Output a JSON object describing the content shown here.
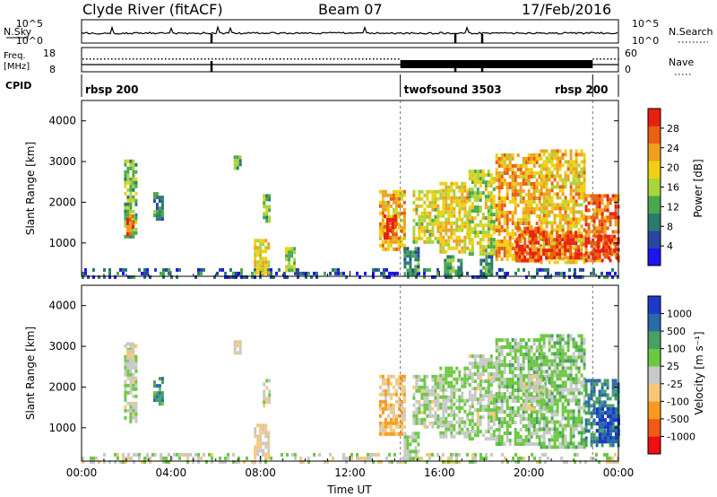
{
  "header": {
    "station": "Clyde River (fitACF)",
    "beam": "Beam 07",
    "date": "17/Feb/2016"
  },
  "params_strip": {
    "nsky_label": "N.Sky",
    "nsky_top": "10^5",
    "nsky_bottom": "10^0",
    "nsearch_label": "N.Search",
    "freq_label_1": "Freq.",
    "freq_label_2": "[MHz]",
    "freq_ticks": [
      "18",
      "8"
    ],
    "nave_label": "Nave",
    "nave_ticks": [
      "60",
      "0"
    ],
    "cpid_label": "CPID"
  },
  "cpid_segments": [
    {
      "label": "rbsp 200",
      "start_hour": 0.0,
      "end_hour": 14.25
    },
    {
      "label": "twofsound 3503",
      "start_hour": 14.25,
      "end_hour": 22.85
    },
    {
      "label": "rbsp 200",
      "start_hour": 22.85,
      "end_hour": 24.0
    }
  ],
  "colors": {
    "power_scale": [
      "#1e14f0",
      "#2846a0",
      "#2a7a6e",
      "#4aa84c",
      "#a8d43c",
      "#f0d010",
      "#f0a020",
      "#e86010",
      "#e82010"
    ],
    "velocity_scale": [
      "#ee1010",
      "#f05a14",
      "#f89a20",
      "#f8c878",
      "#c8c8c8",
      "#6cc840",
      "#48a060",
      "#2a6aa8",
      "#1e38c8"
    ]
  },
  "chart_data": [
    {
      "type": "heatmap",
      "name": "power",
      "ylabel": "Slant Range [km]",
      "ylim": [
        180,
        4500
      ],
      "yticks": [
        1000,
        2000,
        3000,
        4000
      ],
      "xlim": [
        0,
        24
      ],
      "colorbar_label": "Power [dB]",
      "colorbar_ticks": [
        "4",
        "8",
        "12",
        "16",
        "20",
        "24",
        "28"
      ],
      "value_range": [
        0,
        32
      ],
      "regions": [
        {
          "t0": 1.9,
          "t1": 2.5,
          "r0": 1150,
          "r1": 3050,
          "value": 14
        },
        {
          "t0": 2.0,
          "t1": 2.35,
          "r0": 1250,
          "r1": 1700,
          "value": 26
        },
        {
          "t0": 3.2,
          "t1": 3.6,
          "r0": 1550,
          "r1": 2250,
          "value": 10
        },
        {
          "t0": 6.8,
          "t1": 7.1,
          "r0": 2850,
          "r1": 3150,
          "value": 12
        },
        {
          "t0": 7.7,
          "t1": 8.4,
          "r0": 300,
          "r1": 1100,
          "value": 20
        },
        {
          "t0": 8.1,
          "t1": 8.35,
          "r0": 1550,
          "r1": 2200,
          "value": 14
        },
        {
          "t0": 9.1,
          "t1": 9.5,
          "r0": 300,
          "r1": 900,
          "value": 16
        },
        {
          "t0": 13.3,
          "t1": 14.4,
          "r0": 850,
          "r1": 2300,
          "value": 22
        },
        {
          "t0": 13.5,
          "t1": 14.0,
          "r0": 1100,
          "r1": 1700,
          "value": 29
        },
        {
          "t0": 14.4,
          "t1": 15.1,
          "r0": 200,
          "r1": 900,
          "value": 10
        },
        {
          "t0": 14.8,
          "t1": 16.0,
          "r0": 1000,
          "r1": 2300,
          "value": 18
        },
        {
          "t0": 16.0,
          "t1": 17.3,
          "r0": 800,
          "r1": 2500,
          "value": 20
        },
        {
          "t0": 16.2,
          "t1": 17.0,
          "r0": 250,
          "r1": 700,
          "value": 12
        },
        {
          "t0": 17.3,
          "t1": 18.5,
          "r0": 700,
          "r1": 2800,
          "value": 17
        },
        {
          "t0": 17.8,
          "t1": 18.4,
          "r0": 200,
          "r1": 700,
          "value": 10
        },
        {
          "t0": 18.5,
          "t1": 20.5,
          "r0": 600,
          "r1": 3200,
          "value": 22
        },
        {
          "t0": 19.4,
          "t1": 20.6,
          "r0": 600,
          "r1": 1400,
          "value": 29
        },
        {
          "t0": 20.5,
          "t1": 22.5,
          "r0": 500,
          "r1": 3300,
          "value": 21
        },
        {
          "t0": 20.6,
          "t1": 22.3,
          "r0": 600,
          "r1": 1300,
          "value": 29
        },
        {
          "t0": 22.5,
          "t1": 24.0,
          "r0": 600,
          "r1": 2200,
          "value": 26
        },
        {
          "t0": 22.8,
          "t1": 24.0,
          "r0": 650,
          "r1": 1200,
          "value": 30
        }
      ],
      "noise_rows": [
        {
          "t0": 0.0,
          "t1": 24.0,
          "r0": 180,
          "r1": 380,
          "value": 6
        }
      ]
    },
    {
      "type": "heatmap",
      "name": "velocity",
      "ylabel": "Slant Range [km]",
      "ylim": [
        180,
        4500
      ],
      "yticks": [
        1000,
        2000,
        3000,
        4000
      ],
      "xlim": [
        0,
        24
      ],
      "xlabel": "Time UT",
      "xticks": [
        "00:00",
        "04:00",
        "08:00",
        "12:00",
        "16:00",
        "20:00",
        "00:00"
      ],
      "colorbar_label": "Velocity [m s⁻¹]",
      "colorbar_ticks": [
        "-1000",
        "-500",
        "-100",
        "-25",
        "25",
        "100",
        "500",
        "1000"
      ],
      "value_range": [
        -1200,
        1200
      ],
      "regions": [
        {
          "t0": 1.9,
          "t1": 2.5,
          "r0": 1150,
          "r1": 3050,
          "value": 80
        },
        {
          "t0": 2.0,
          "t1": 2.35,
          "r0": 2600,
          "r1": 3100,
          "value": -150
        },
        {
          "t0": 3.2,
          "t1": 3.6,
          "r0": 1550,
          "r1": 2250,
          "value": 600
        },
        {
          "t0": 6.8,
          "t1": 7.1,
          "r0": 2850,
          "r1": 3150,
          "value": -80
        },
        {
          "t0": 7.7,
          "t1": 8.4,
          "r0": 300,
          "r1": 1100,
          "value": -150
        },
        {
          "t0": 8.1,
          "t1": 8.35,
          "r0": 1550,
          "r1": 2200,
          "value": -60
        },
        {
          "t0": 13.3,
          "t1": 14.4,
          "r0": 850,
          "r1": 2300,
          "value": -300
        },
        {
          "t0": 14.4,
          "t1": 15.1,
          "r0": 200,
          "r1": 900,
          "value": 120
        },
        {
          "t0": 14.8,
          "t1": 16.0,
          "r0": 1000,
          "r1": 2300,
          "value": 80
        },
        {
          "t0": 16.0,
          "t1": 17.3,
          "r0": 800,
          "r1": 2500,
          "value": 150
        },
        {
          "t0": 17.3,
          "t1": 18.5,
          "r0": 700,
          "r1": 2800,
          "value": 90
        },
        {
          "t0": 18.5,
          "t1": 20.5,
          "r0": 600,
          "r1": 3200,
          "value": 200
        },
        {
          "t0": 19.6,
          "t1": 21.0,
          "r0": 1500,
          "r1": 2300,
          "value": 0
        },
        {
          "t0": 20.5,
          "t1": 22.5,
          "r0": 500,
          "r1": 3300,
          "value": 250
        },
        {
          "t0": 22.5,
          "t1": 24.0,
          "r0": 600,
          "r1": 2200,
          "value": 650
        },
        {
          "t0": 23.0,
          "t1": 24.0,
          "r0": 650,
          "r1": 1500,
          "value": 950
        }
      ],
      "noise_rows": [
        {
          "t0": 0.0,
          "t1": 24.0,
          "r0": 180,
          "r1": 380,
          "value": 60
        }
      ]
    }
  ]
}
